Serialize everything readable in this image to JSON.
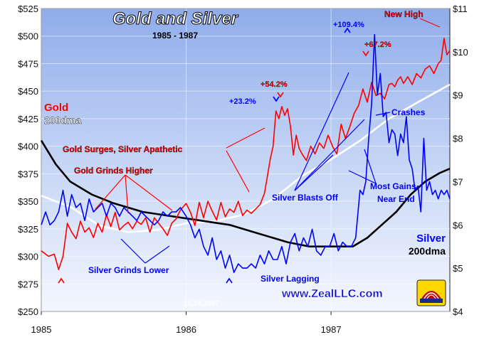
{
  "chart_data": {
    "type": "line",
    "title": "Gold and Silver",
    "subtitle": "1985 - 1987",
    "x_ticks": [
      "1985",
      "1986",
      "1987"
    ],
    "y_left": {
      "ticks": [
        "$250",
        "$275",
        "$300",
        "$325",
        "$350",
        "$375",
        "$400",
        "$425",
        "$450",
        "$475",
        "$500",
        "$525"
      ],
      "range": [
        250,
        525
      ]
    },
    "y_right": {
      "ticks": [
        "$4",
        "$5",
        "$6",
        "$7",
        "$8",
        "$9",
        "$10",
        "$11"
      ],
      "range": [
        4,
        11
      ]
    },
    "x_range": [
      1985.0,
      1987.82
    ],
    "series": [
      {
        "name": "Gold",
        "axis": "left",
        "color": "#ff0000",
        "x": [
          1985.0,
          1985.05,
          1985.09,
          1985.12,
          1985.15,
          1985.18,
          1985.21,
          1985.24,
          1985.27,
          1985.3,
          1985.33,
          1985.36,
          1985.39,
          1985.42,
          1985.45,
          1985.48,
          1985.51,
          1985.54,
          1985.57,
          1985.6,
          1985.63,
          1985.66,
          1985.69,
          1985.72,
          1985.75,
          1985.78,
          1985.81,
          1985.84,
          1985.87,
          1985.9,
          1985.93,
          1985.96,
          1986.0,
          1986.03,
          1986.06,
          1986.09,
          1986.12,
          1986.15,
          1986.18,
          1986.21,
          1986.24,
          1986.27,
          1986.3,
          1986.33,
          1986.36,
          1986.39,
          1986.42,
          1986.45,
          1986.48,
          1986.51,
          1986.54,
          1986.56,
          1986.58,
          1986.6,
          1986.62,
          1986.64,
          1986.66,
          1986.68,
          1986.7,
          1986.72,
          1986.74,
          1986.76,
          1986.78,
          1986.8,
          1986.83,
          1986.86,
          1986.89,
          1986.92,
          1986.95,
          1986.98,
          1987.01,
          1987.04,
          1987.07,
          1987.1,
          1987.13,
          1987.16,
          1987.19,
          1987.22,
          1987.25,
          1987.28,
          1987.31,
          1987.34,
          1987.37,
          1987.4,
          1987.42,
          1987.44,
          1987.46,
          1987.48,
          1987.5,
          1987.53,
          1987.56,
          1987.59,
          1987.62,
          1987.65,
          1987.68,
          1987.71,
          1987.74,
          1987.76,
          1987.78,
          1987.8,
          1987.82
        ],
        "values": [
          305,
          300,
          302,
          288,
          300,
          330,
          322,
          316,
          332,
          322,
          326,
          317,
          330,
          322,
          338,
          327,
          340,
          324,
          328,
          331,
          325,
          332,
          329,
          335,
          322,
          335,
          330,
          325,
          319,
          330,
          334,
          342,
          348,
          340,
          328,
          349,
          335,
          350,
          341,
          333,
          349,
          336,
          343,
          340,
          350,
          337,
          342,
          339,
          343,
          347,
          357,
          372,
          388,
          400,
          432,
          425,
          436,
          428,
          434,
          418,
          392,
          410,
          398,
          393,
          387,
          400,
          393,
          403,
          398,
          410,
          400,
          393,
          420,
          407,
          418,
          430,
          437,
          452,
          440,
          458,
          446,
          448,
          443,
          456,
          457,
          454,
          460,
          463,
          457,
          463,
          456,
          466,
          462,
          470,
          473,
          466,
          475,
          478,
          498,
          483,
          487
        ]
      },
      {
        "name": "Silver",
        "axis": "right",
        "color": "#0000ff",
        "x": [
          1985.0,
          1985.03,
          1985.06,
          1985.09,
          1985.12,
          1985.15,
          1985.18,
          1985.21,
          1985.24,
          1985.27,
          1985.3,
          1985.33,
          1985.36,
          1985.39,
          1985.42,
          1985.45,
          1985.48,
          1985.51,
          1985.54,
          1985.57,
          1985.6,
          1985.63,
          1985.66,
          1985.69,
          1985.72,
          1985.75,
          1985.78,
          1985.81,
          1985.84,
          1985.87,
          1985.9,
          1985.93,
          1985.96,
          1986.0,
          1986.03,
          1986.06,
          1986.09,
          1986.12,
          1986.15,
          1986.18,
          1986.21,
          1986.24,
          1986.27,
          1986.3,
          1986.33,
          1986.36,
          1986.39,
          1986.42,
          1986.45,
          1986.48,
          1986.51,
          1986.54,
          1986.57,
          1986.6,
          1986.63,
          1986.66,
          1986.69,
          1986.72,
          1986.75,
          1986.78,
          1986.81,
          1986.84,
          1986.87,
          1986.9,
          1986.93,
          1986.96,
          1986.99,
          1987.02,
          1987.05,
          1987.08,
          1987.11,
          1987.14,
          1987.17,
          1987.2,
          1987.22,
          1987.24,
          1987.26,
          1987.28,
          1987.3,
          1987.32,
          1987.34,
          1987.36,
          1987.38,
          1987.4,
          1987.42,
          1987.44,
          1987.46,
          1987.48,
          1987.5,
          1987.52,
          1987.54,
          1987.56,
          1987.58,
          1987.6,
          1987.62,
          1987.64,
          1987.66,
          1987.68,
          1987.7,
          1987.72,
          1987.74,
          1987.76,
          1987.78,
          1987.8,
          1987.82
        ],
        "values": [
          6.0,
          6.3,
          6.0,
          6.1,
          6.3,
          6.8,
          6.2,
          6.7,
          6.4,
          6.5,
          6.1,
          6.6,
          6.3,
          6.4,
          6.5,
          6.2,
          6.5,
          6.4,
          6.2,
          6.4,
          6.3,
          6.2,
          6.1,
          6.3,
          6.2,
          6.1,
          6.0,
          6.1,
          6.3,
          6.2,
          6.3,
          6.3,
          6.4,
          6.2,
          6.0,
          5.7,
          5.9,
          5.5,
          5.3,
          5.7,
          5.2,
          5.4,
          5.0,
          5.3,
          4.9,
          5.1,
          5.0,
          5.0,
          5.1,
          5.0,
          5.3,
          5.1,
          5.4,
          5.2,
          5.2,
          5.5,
          5.1,
          5.6,
          5.8,
          5.4,
          5.7,
          5.5,
          5.9,
          5.4,
          5.3,
          5.5,
          5.5,
          5.8,
          5.4,
          5.6,
          5.5,
          5.5,
          5.7,
          6.8,
          6.7,
          7.0,
          8.0,
          8.8,
          10.4,
          9.0,
          9.5,
          8.5,
          8.6,
          7.9,
          8.2,
          8.1,
          7.6,
          8.1,
          7.9,
          8.5,
          7.5,
          7.3,
          6.8,
          6.9,
          6.3,
          8.0,
          6.8,
          7.0,
          6.7,
          6.8,
          6.6,
          6.8,
          6.7,
          6.8,
          6.6
        ]
      },
      {
        "name": "Gold 200dma",
        "axis": "left",
        "color": "#ffffff",
        "x": [
          1985.0,
          1985.2,
          1985.4,
          1985.6,
          1985.8,
          1986.0,
          1986.2,
          1986.4,
          1986.6,
          1986.8,
          1987.0,
          1987.2,
          1987.4,
          1987.6,
          1987.82
        ],
        "values": [
          355,
          345,
          328,
          322,
          324,
          330,
          332,
          338,
          352,
          373,
          388,
          405,
          425,
          440,
          456
        ]
      },
      {
        "name": "Silver 200dma",
        "axis": "right",
        "color": "#000000",
        "x": [
          1985.0,
          1985.1,
          1985.2,
          1985.35,
          1985.5,
          1985.7,
          1985.9,
          1986.1,
          1986.3,
          1986.5,
          1986.7,
          1986.85,
          1987.0,
          1987.15,
          1987.25,
          1987.35,
          1987.45,
          1987.55,
          1987.65,
          1987.75,
          1987.82
        ],
        "values": [
          7.95,
          7.4,
          7.0,
          6.7,
          6.5,
          6.3,
          6.2,
          6.1,
          6.0,
          5.8,
          5.6,
          5.5,
          5.5,
          5.5,
          5.7,
          6.0,
          6.3,
          6.7,
          7.0,
          7.2,
          7.3
        ]
      }
    ],
    "annotations": [
      {
        "id": "gold-label",
        "text": "Gold",
        "color": "#ff0000"
      },
      {
        "id": "gold-200dma-label",
        "text": "200dma",
        "color": "#ffffff"
      },
      {
        "id": "silver-label",
        "text": "Silver",
        "color": "#0000ff"
      },
      {
        "id": "silver-200dma-label",
        "text": "200dma",
        "color": "#000000"
      },
      {
        "id": "gold-surges",
        "text": "Gold Surges, Silver Apathetic",
        "color": "#ff0000"
      },
      {
        "id": "gold-grinds",
        "text": "Gold Grinds Higher",
        "color": "#ff0000"
      },
      {
        "id": "silver-grinds",
        "text": "Silver Grinds Lower",
        "color": "#0000ff"
      },
      {
        "id": "silver-lagging",
        "text": "Silver Lagging",
        "color": "#0000ff"
      },
      {
        "id": "silver-blasts",
        "text": "Silver Blasts Off",
        "color": "#0000ff"
      },
      {
        "id": "most-gains-1",
        "text": "Most Gains",
        "color": "#0000ff"
      },
      {
        "id": "most-gains-2",
        "text": "Near End",
        "color": "#0000ff"
      },
      {
        "id": "crashes",
        "text": "Crashes",
        "color": "#0000ff"
      },
      {
        "id": "new-high",
        "text": "New High",
        "color": "#ff0000"
      },
      {
        "id": "pct-109",
        "text": "+109.4%",
        "color": "#0000ff"
      },
      {
        "id": "pct-67",
        "text": "+67.2%",
        "color": "#ff0000"
      },
      {
        "id": "pct-54",
        "text": "+54.2%",
        "color": "#ff0000"
      },
      {
        "id": "pct-23",
        "text": "+23.2%",
        "color": "#0000ff"
      },
      {
        "id": "date-stamp",
        "text": "10.24.2007",
        "color": "#ffffff"
      },
      {
        "id": "website",
        "text": "www.ZealLLC.com",
        "color": "#0000cc"
      }
    ],
    "grid": true,
    "colors": {
      "plot_top": "#99b5ee",
      "plot_bottom": "#eef3ff"
    }
  }
}
